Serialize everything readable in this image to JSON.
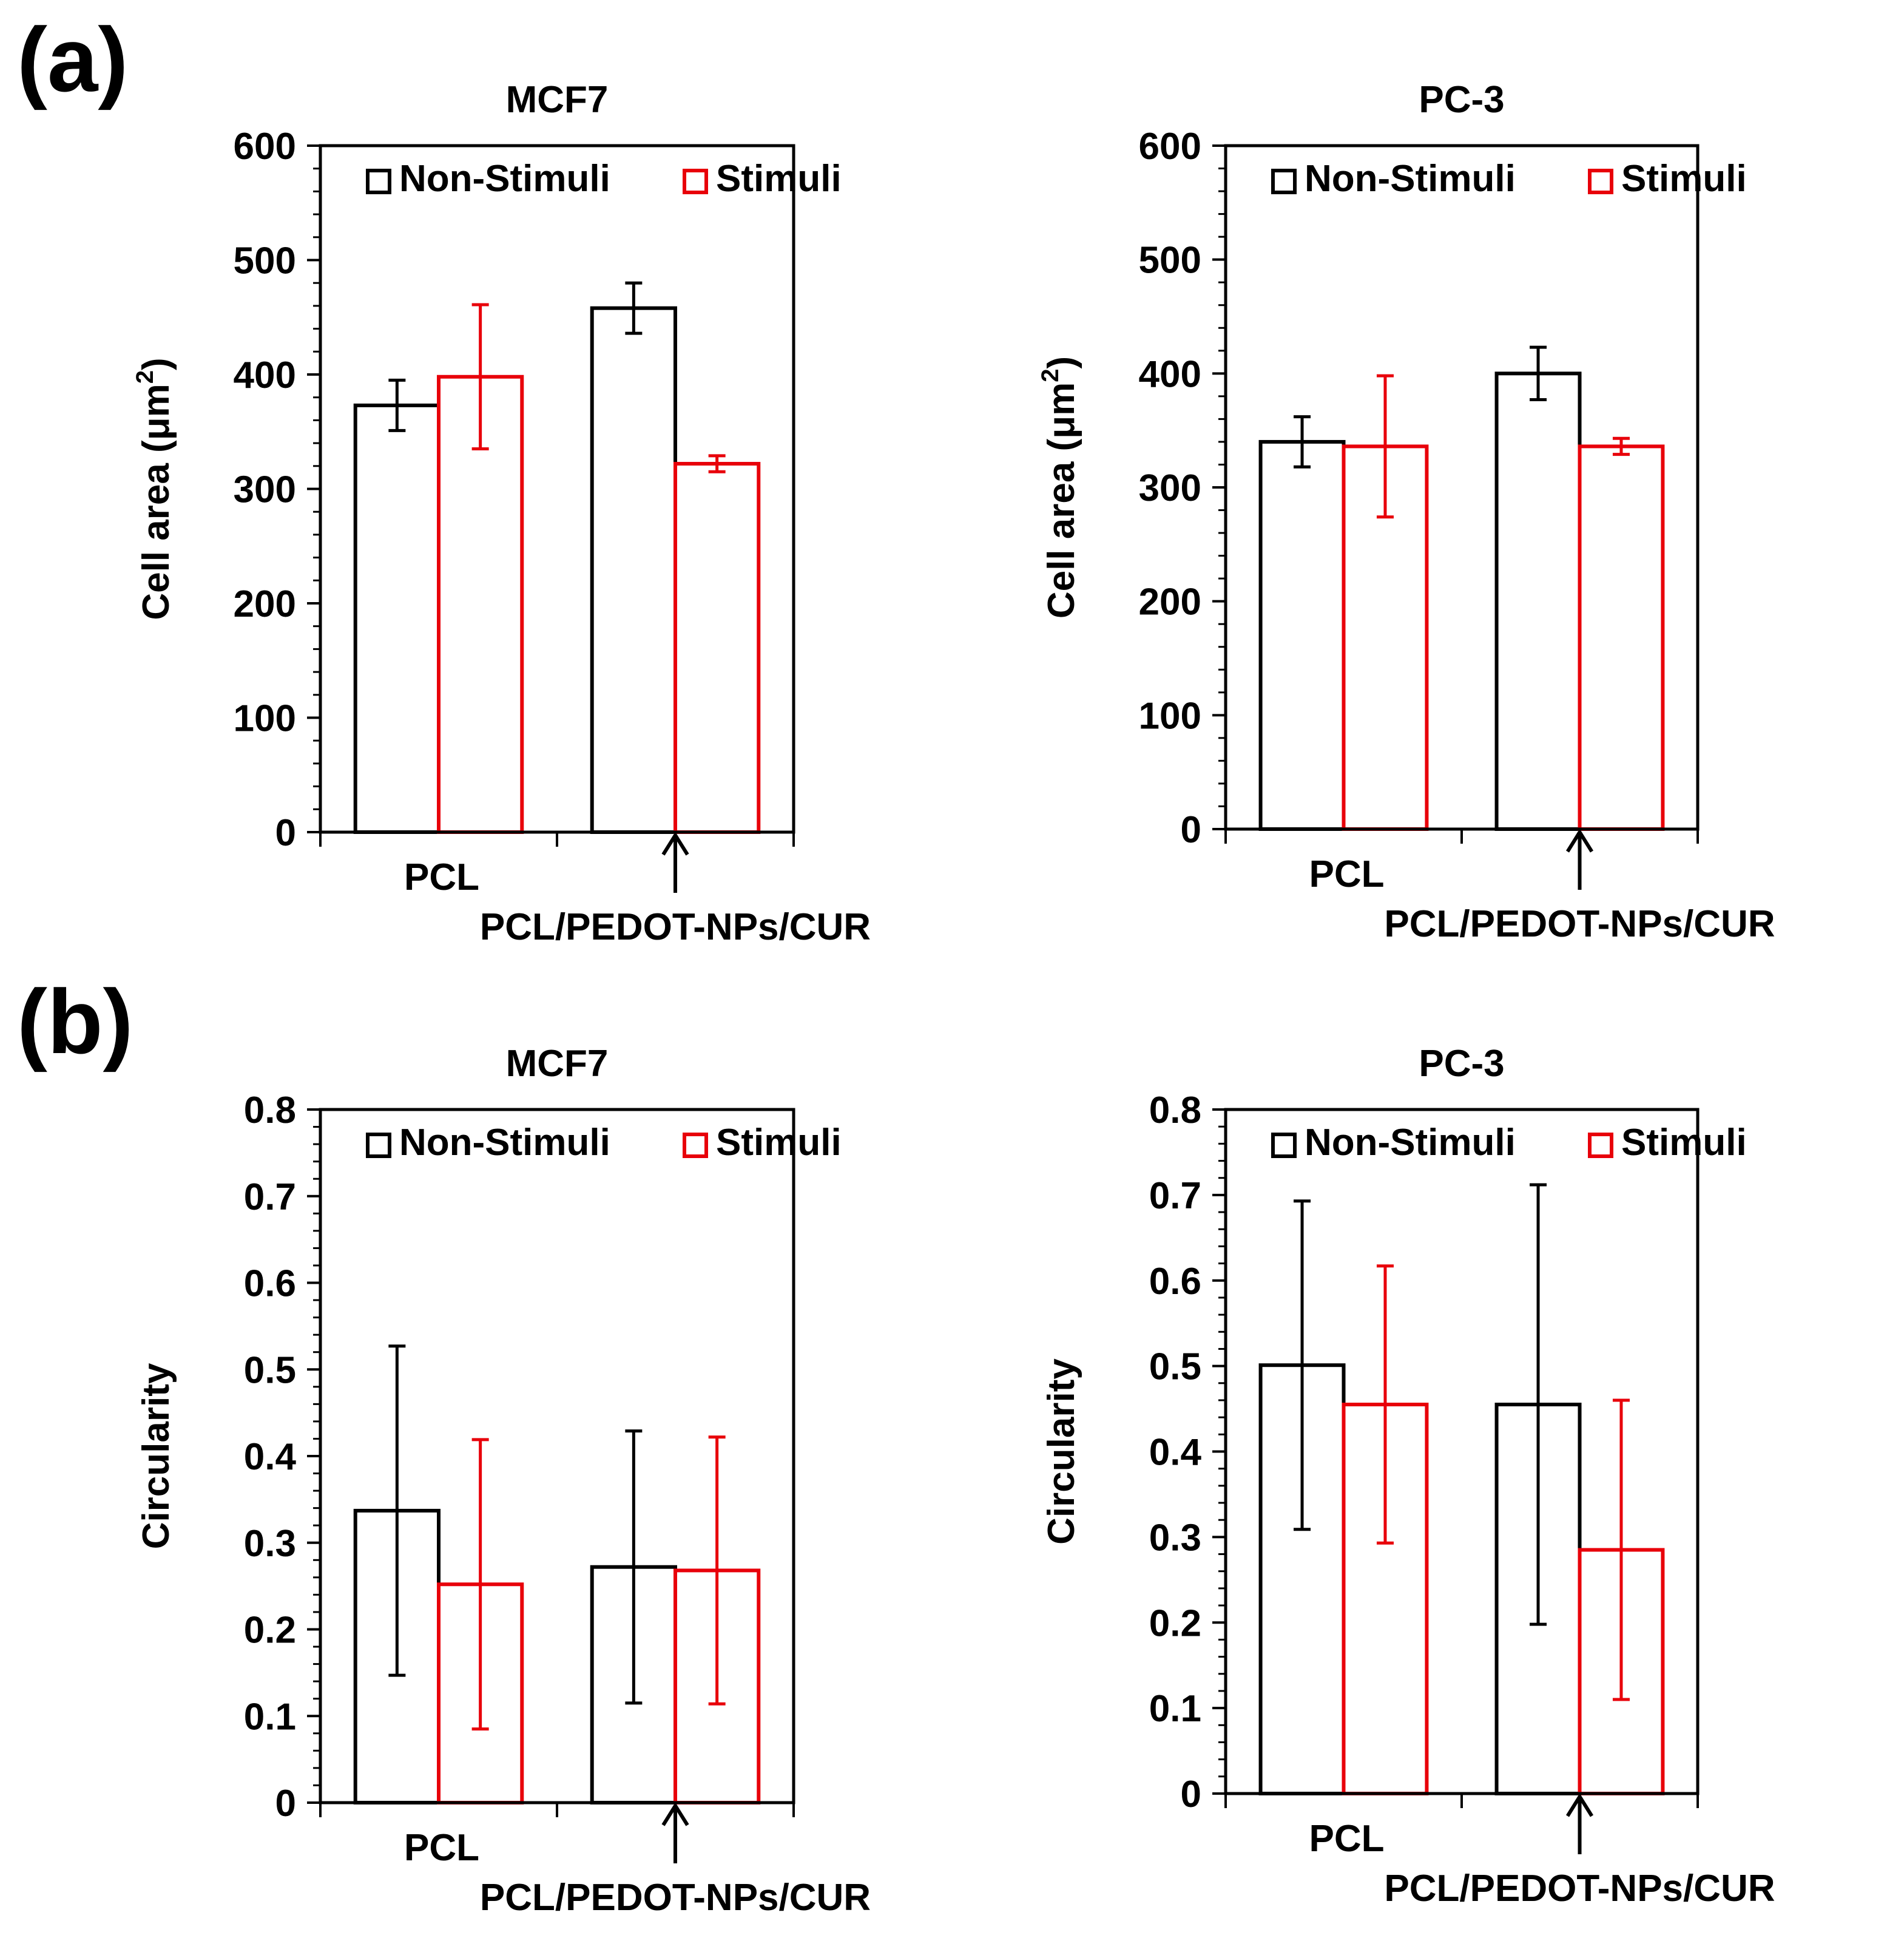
{
  "panels": [
    {
      "label": "(a)"
    },
    {
      "label": "(b)"
    }
  ],
  "colors": {
    "non_stimuli": "#000000",
    "stimuli": "#e8000a"
  },
  "chart_data": [
    {
      "type": "bar",
      "title": "MCF7",
      "ylabel": "Cell area (μm²)",
      "ylabel_parts": {
        "main": "Cell area (μm",
        "sup": "2",
        "end": ")"
      },
      "ylim": [
        0,
        600
      ],
      "ytick_values": [
        0,
        100,
        200,
        300,
        400,
        500,
        600
      ],
      "ytick_labels": [
        "0",
        "100",
        "200",
        "300",
        "400",
        "500",
        "600"
      ],
      "categories": [
        "PCL",
        "PCL/PEDOT-NPs/CUR"
      ],
      "arrow_under_category": "PCL/PEDOT-NPs/CUR",
      "legend_position": "top",
      "series": [
        {
          "name": "Non-Stimuli",
          "values": [
            373,
            458
          ],
          "errors": [
            22,
            22
          ]
        },
        {
          "name": "Stimuli",
          "values": [
            398,
            322
          ],
          "errors": [
            63,
            7
          ]
        }
      ]
    },
    {
      "type": "bar",
      "title": "PC-3",
      "ylabel": "Cell area (μm²)",
      "ylabel_parts": {
        "main": "Cell area (μm",
        "sup": "2",
        "end": ")"
      },
      "ylim": [
        0,
        600
      ],
      "ytick_values": [
        0,
        100,
        200,
        300,
        400,
        500,
        600
      ],
      "ytick_labels": [
        "0",
        "100",
        "200",
        "300",
        "400",
        "500",
        "600"
      ],
      "categories": [
        "PCL",
        "PCL/PEDOT-NPs/CUR"
      ],
      "arrow_under_category": "PCL/PEDOT-NPs/CUR",
      "legend_position": "top",
      "series": [
        {
          "name": "Non-Stimuli",
          "values": [
            340,
            400
          ],
          "errors": [
            22,
            23
          ]
        },
        {
          "name": "Stimuli",
          "values": [
            336,
            336
          ],
          "errors": [
            62,
            7
          ]
        }
      ]
    },
    {
      "type": "bar",
      "title": "MCF7",
      "ylabel": "Circularity",
      "ylabel_parts": {
        "main": "Circularity",
        "sup": "",
        "end": ""
      },
      "ylim": [
        0,
        0.8
      ],
      "ytick_values": [
        0,
        0.1,
        0.2,
        0.3,
        0.4,
        0.5,
        0.6,
        0.7,
        0.8
      ],
      "ytick_labels": [
        "0",
        "0.1",
        "0.2",
        "0.3",
        "0.4",
        "0.5",
        "0.6",
        "0.7",
        "0.8"
      ],
      "categories": [
        "PCL",
        "PCL/PEDOT-NPs/CUR"
      ],
      "arrow_under_category": "PCL/PEDOT-NPs/CUR",
      "legend_position": "top",
      "series": [
        {
          "name": "Non-Stimuli",
          "values": [
            0.337,
            0.272
          ],
          "errors": [
            0.19,
            0.157
          ]
        },
        {
          "name": "Stimuli",
          "values": [
            0.252,
            0.268
          ],
          "errors": [
            0.167,
            0.154
          ]
        }
      ]
    },
    {
      "type": "bar",
      "title": "PC-3",
      "ylabel": "Circularity",
      "ylabel_parts": {
        "main": "Circularity",
        "sup": "",
        "end": ""
      },
      "ylim": [
        0,
        0.8
      ],
      "ytick_values": [
        0,
        0.1,
        0.2,
        0.3,
        0.4,
        0.5,
        0.6,
        0.7,
        0.8
      ],
      "ytick_labels": [
        "0",
        "0.1",
        "0.2",
        "0.3",
        "0.4",
        "0.5",
        "0.6",
        "0.7",
        "0.8"
      ],
      "categories": [
        "PCL",
        "PCL/PEDOT-NPs/CUR"
      ],
      "arrow_under_category": "PCL/PEDOT-NPs/CUR",
      "legend_position": "top",
      "series": [
        {
          "name": "Non-Stimuli",
          "values": [
            0.501,
            0.455
          ],
          "errors": [
            0.192,
            0.257
          ]
        },
        {
          "name": "Stimuli",
          "values": [
            0.455,
            0.285
          ],
          "errors": [
            0.162,
            0.175
          ]
        }
      ]
    }
  ]
}
